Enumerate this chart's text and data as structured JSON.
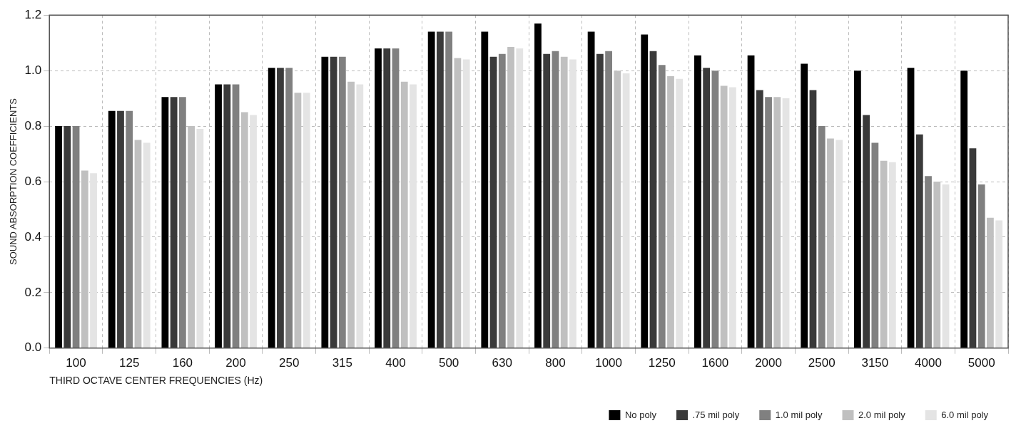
{
  "chart_data": {
    "type": "bar",
    "xlabel": "THIRD OCTAVE CENTER FREQUENCIES (Hz)",
    "ylabel": "SOUND ABSORPTION COEFFICIENTS",
    "categories": [
      "100",
      "125",
      "160",
      "200",
      "250",
      "315",
      "400",
      "500",
      "630",
      "800",
      "1000",
      "1250",
      "1600",
      "2000",
      "2500",
      "3150",
      "4000",
      "5000"
    ],
    "series": [
      {
        "name": "No poly",
        "color": "#000000",
        "values": [
          0.8,
          0.855,
          0.905,
          0.95,
          1.01,
          1.05,
          1.08,
          1.14,
          1.14,
          1.17,
          1.14,
          1.13,
          1.055,
          1.055,
          1.025,
          1.0,
          1.01,
          1.0
        ]
      },
      {
        "name": ".75 mil poly",
        "color": "#3a3a3a",
        "values": [
          0.8,
          0.855,
          0.905,
          0.95,
          1.01,
          1.05,
          1.08,
          1.14,
          1.05,
          1.06,
          1.06,
          1.07,
          1.01,
          0.93,
          0.93,
          0.84,
          0.77,
          0.72
        ]
      },
      {
        "name": "1.0 mil poly",
        "color": "#808080",
        "values": [
          0.8,
          0.855,
          0.905,
          0.95,
          1.01,
          1.05,
          1.08,
          1.14,
          1.06,
          1.07,
          1.07,
          1.02,
          1.0,
          0.905,
          0.8,
          0.74,
          0.62,
          0.59
        ]
      },
      {
        "name": "2.0 mil poly",
        "color": "#c0c0c0",
        "values": [
          0.64,
          0.75,
          0.8,
          0.85,
          0.92,
          0.96,
          0.96,
          1.045,
          1.085,
          1.05,
          1.0,
          0.98,
          0.945,
          0.905,
          0.755,
          0.675,
          0.6,
          0.47
        ]
      },
      {
        "name": "6.0 mil poly",
        "color": "#e4e4e4",
        "values": [
          0.63,
          0.74,
          0.79,
          0.84,
          0.92,
          0.95,
          0.95,
          1.04,
          1.08,
          1.04,
          0.99,
          0.97,
          0.94,
          0.9,
          0.75,
          0.67,
          0.59,
          0.46
        ]
      }
    ],
    "ylim": [
      0,
      1.2
    ],
    "yticks": [
      {
        "value": 0,
        "label": "0.0"
      },
      {
        "value": 0.2,
        "label": "0.2"
      },
      {
        "value": 0.4,
        "label": "0.4"
      },
      {
        "value": 0.6,
        "label": "0.6"
      },
      {
        "value": 0.8,
        "label": "0.8"
      },
      {
        "value": 1.0,
        "label": "1.0"
      },
      {
        "value": 1.2,
        "label": "1.2"
      }
    ],
    "grid": true,
    "legend": "bottom right"
  }
}
